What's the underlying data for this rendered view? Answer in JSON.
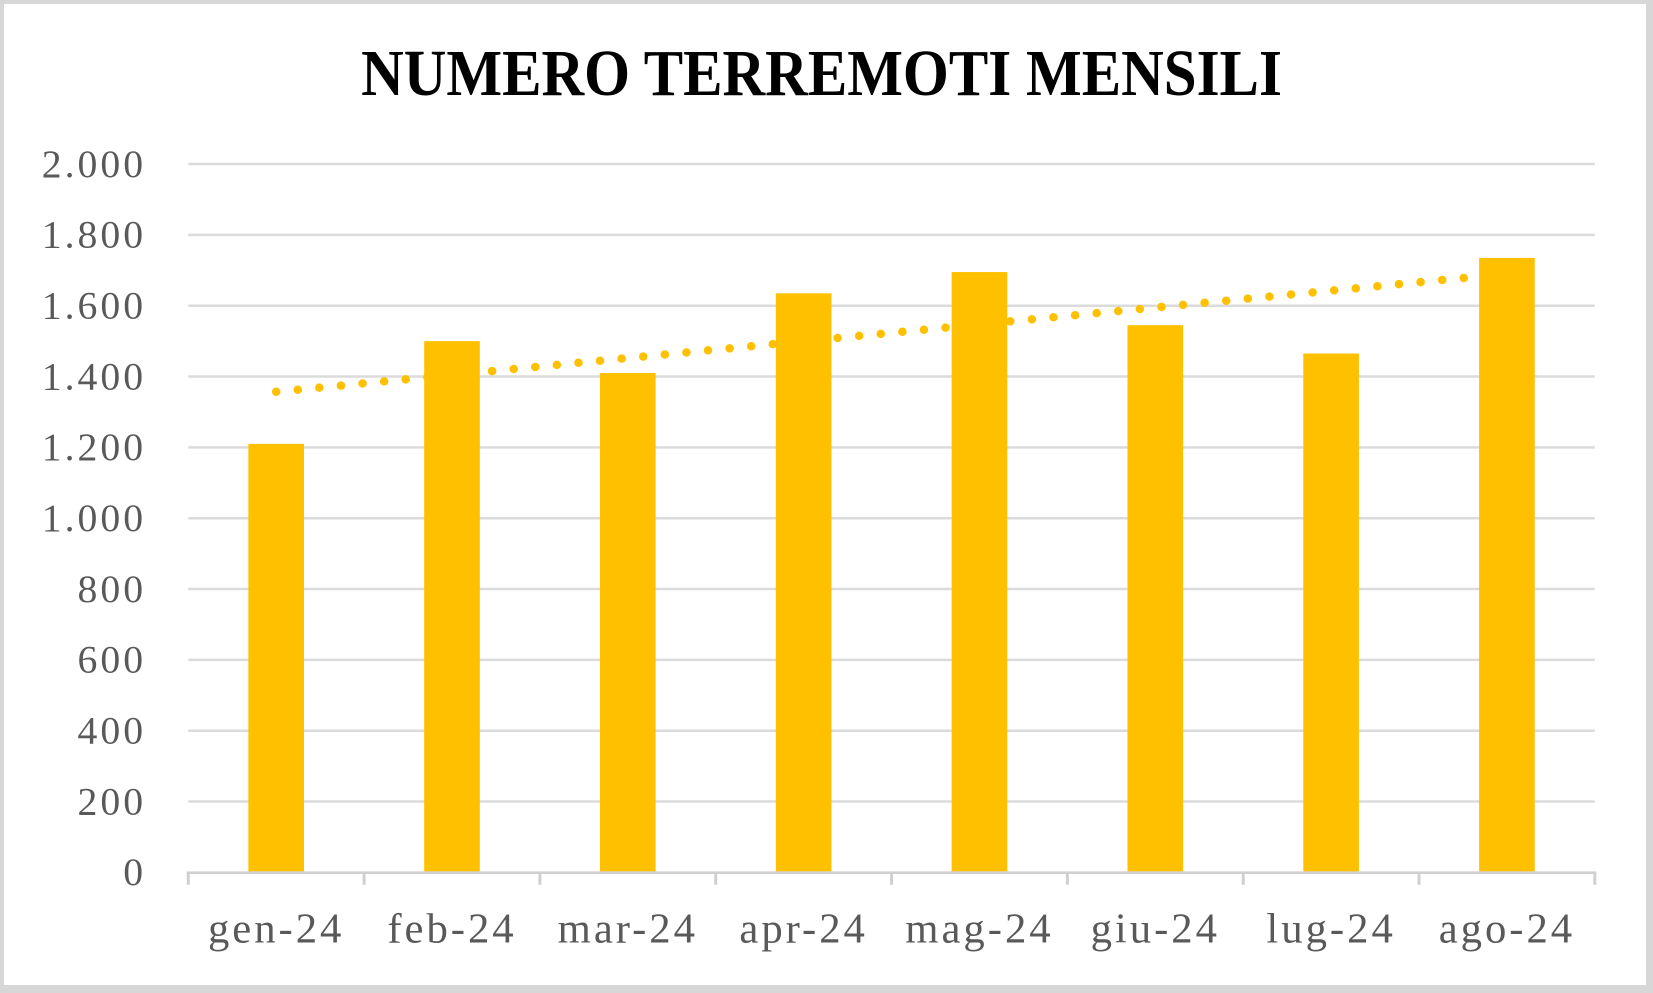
{
  "chart_data": {
    "type": "bar",
    "title": "NUMERO TERREMOTI MENSILI",
    "categories": [
      "gen-24",
      "feb-24",
      "mar-24",
      "apr-24",
      "mag-24",
      "giu-24",
      "lug-24",
      "ago-24"
    ],
    "values": [
      1210,
      1500,
      1410,
      1635,
      1695,
      1545,
      1465,
      1735
    ],
    "trendline": {
      "type": "linear",
      "style": "dotted",
      "start_value": 1357,
      "end_value": 1690
    },
    "ylim": [
      0,
      2000
    ],
    "ytick_step": 200,
    "ytick_labels": [
      "0",
      "200",
      "400",
      "600",
      "800",
      "1.000",
      "1.200",
      "1.400",
      "1.600",
      "1.800",
      "2.000"
    ],
    "xlabel": "",
    "ylabel": "",
    "legend": "none",
    "grid": true,
    "colors": {
      "bar": "#FFC000",
      "trendline": "#FFC000",
      "gridline": "#DBDBDB",
      "axis": "#D0D0D0",
      "tick_label": "#595959",
      "title": "#000000",
      "frame_border": "#D7D7D7",
      "background": "#FFFFFF"
    }
  }
}
